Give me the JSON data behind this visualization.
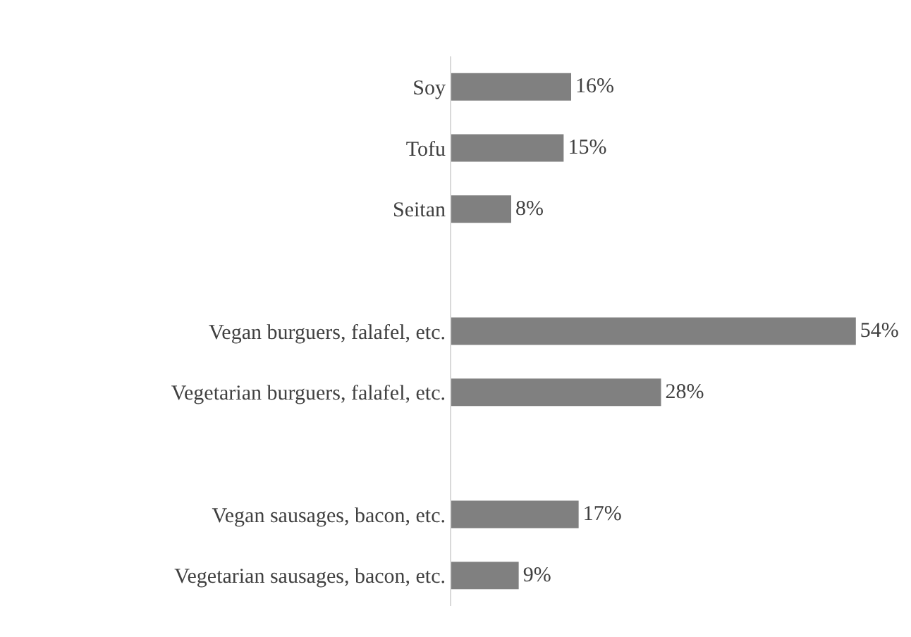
{
  "chart_data": {
    "type": "bar",
    "orientation": "horizontal",
    "categories": [
      "Soy",
      "Tofu",
      "Seitan",
      null,
      "Vegan burguers, falafel, etc.",
      "Vegetarian burguers, falafel, etc.",
      null,
      "Vegan sausages, bacon, etc.",
      "Vegetarian sausages, bacon, etc."
    ],
    "values": [
      16,
      15,
      8,
      null,
      54,
      28,
      null,
      17,
      9
    ],
    "value_labels": [
      "16%",
      "15%",
      "8%",
      null,
      "54%",
      "28%",
      null,
      "17%",
      "9%"
    ],
    "color": "#808080",
    "tick_labels": "y"
  }
}
